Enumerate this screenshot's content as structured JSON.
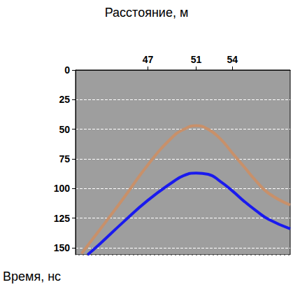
{
  "chart_data": {
    "type": "line",
    "xlabel": "Расстояние, м",
    "ylabel": "Время, нс",
    "xlim": [
      41,
      58.8
    ],
    "xticks": [
      47,
      51,
      54
    ],
    "ylim": [
      0,
      156
    ],
    "yticks": [
      0,
      25,
      50,
      75,
      100,
      125,
      150
    ],
    "grid": true,
    "series": [
      {
        "color": "#c8906a",
        "x": [
          41.5,
          43,
          45,
          47,
          49,
          50,
          51,
          52,
          53,
          54,
          55,
          56,
          57,
          58.8
        ],
        "values": [
          155,
          135,
          108,
          80,
          57,
          50,
          47,
          50,
          58,
          70,
          82,
          94,
          104,
          114
        ]
      },
      {
        "color": "#1a1aee",
        "x": [
          42,
          43,
          45,
          47,
          49,
          50,
          51,
          52,
          53,
          54,
          55,
          56,
          57,
          58.8
        ],
        "values": [
          156,
          147,
          128,
          110,
          95,
          89,
          87,
          88,
          94,
          102,
          111,
          119,
          126,
          134
        ]
      }
    ]
  }
}
